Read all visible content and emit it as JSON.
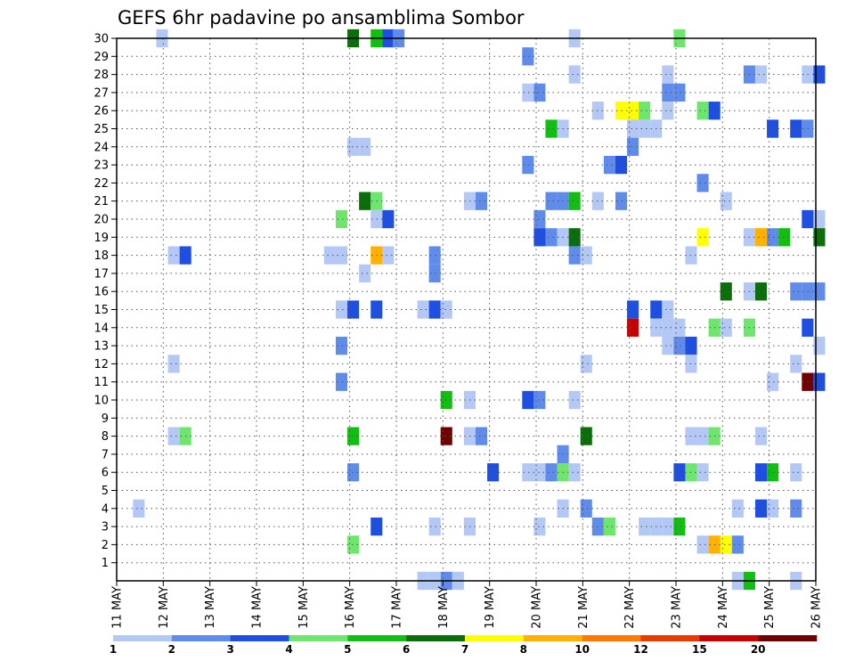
{
  "chart_data": {
    "type": "heatmap",
    "title": "GEFS 6hr padavine po ansamblima Sombor",
    "xlabel": "",
    "ylabel": "",
    "x_ticks": [
      "11 MAY",
      "12 MAY",
      "13 MAY",
      "14 MAY",
      "15 MAY",
      "16 MAY",
      "17 MAY",
      "18 MAY",
      "19 MAY",
      "20 MAY",
      "21 MAY",
      "22 MAY",
      "23 MAY",
      "24 MAY",
      "25 MAY",
      "26 MAY"
    ],
    "y_ticks": [
      "1",
      "2",
      "3",
      "4",
      "5",
      "6",
      "7",
      "8",
      "9",
      "10",
      "11",
      "12",
      "13",
      "14",
      "15",
      "16",
      "17",
      "18",
      "19",
      "20",
      "21",
      "22",
      "23",
      "24",
      "25",
      "26",
      "27",
      "28",
      "29",
      "30"
    ],
    "xlim": [
      0,
      60
    ],
    "ylim": [
      0,
      30
    ],
    "grid": true,
    "legend": {
      "position": "bottom",
      "thresholds": [
        "1",
        "2",
        "3",
        "4",
        "5",
        "6",
        "7",
        "8",
        "10",
        "12",
        "15",
        "20"
      ],
      "colors": [
        "#b4c8f5",
        "#5f8ceb",
        "#1f4fe0",
        "#6ee66e",
        "#11be11",
        "#0a6e0a",
        "#ffff00",
        "#ffb000",
        "#ff7800",
        "#e63c00",
        "#c80000",
        "#6e0000"
      ]
    },
    "cells": [
      {
        "t": 3.4,
        "m": 30,
        "c": 1
      },
      {
        "t": 19.8,
        "m": 30,
        "c": 6
      },
      {
        "t": 21.8,
        "m": 30,
        "c": 5
      },
      {
        "t": 22.8,
        "m": 30,
        "c": 3
      },
      {
        "t": 23.7,
        "m": 30,
        "c": 2
      },
      {
        "t": 38.8,
        "m": 30,
        "c": 1
      },
      {
        "t": 47.8,
        "m": 30,
        "c": 4
      },
      {
        "t": 34.8,
        "m": 29,
        "c": 2
      },
      {
        "t": 38.8,
        "m": 28,
        "c": 1
      },
      {
        "t": 46.8,
        "m": 28,
        "c": 1
      },
      {
        "t": 53.8,
        "m": 28,
        "c": 2
      },
      {
        "t": 54.8,
        "m": 28,
        "c": 1
      },
      {
        "t": 58.8,
        "m": 28,
        "c": 1
      },
      {
        "t": 59.8,
        "m": 28,
        "c": 3
      },
      {
        "t": 34.8,
        "m": 27,
        "c": 1
      },
      {
        "t": 35.8,
        "m": 27,
        "c": 2
      },
      {
        "t": 46.8,
        "m": 27,
        "c": 2
      },
      {
        "t": 47.8,
        "m": 27,
        "c": 2
      },
      {
        "t": 40.8,
        "m": 26,
        "c": 1
      },
      {
        "t": 42.8,
        "m": 26,
        "c": 7
      },
      {
        "t": 43.8,
        "m": 26,
        "c": 7
      },
      {
        "t": 44.8,
        "m": 26,
        "c": 4
      },
      {
        "t": 46.8,
        "m": 26,
        "c": 1
      },
      {
        "t": 49.8,
        "m": 26,
        "c": 4
      },
      {
        "t": 50.8,
        "m": 26,
        "c": 3
      },
      {
        "t": 36.8,
        "m": 25,
        "c": 5
      },
      {
        "t": 37.8,
        "m": 25,
        "c": 1
      },
      {
        "t": 43.8,
        "m": 25,
        "c": 1
      },
      {
        "t": 44.8,
        "m": 25,
        "c": 1
      },
      {
        "t": 45.8,
        "m": 25,
        "c": 1
      },
      {
        "t": 55.8,
        "m": 25,
        "c": 3
      },
      {
        "t": 57.8,
        "m": 25,
        "c": 3
      },
      {
        "t": 58.8,
        "m": 25,
        "c": 2
      },
      {
        "t": 19.8,
        "m": 24,
        "c": 1
      },
      {
        "t": 20.8,
        "m": 24,
        "c": 1
      },
      {
        "t": 43.8,
        "m": 24,
        "c": 2
      },
      {
        "t": 34.8,
        "m": 23,
        "c": 2
      },
      {
        "t": 41.8,
        "m": 23,
        "c": 2
      },
      {
        "t": 42.8,
        "m": 23,
        "c": 3
      },
      {
        "t": 49.8,
        "m": 22,
        "c": 2
      },
      {
        "t": 20.8,
        "m": 21,
        "c": 6
      },
      {
        "t": 21.8,
        "m": 21,
        "c": 4
      },
      {
        "t": 29.8,
        "m": 21,
        "c": 1
      },
      {
        "t": 30.8,
        "m": 21,
        "c": 2
      },
      {
        "t": 36.8,
        "m": 21,
        "c": 2
      },
      {
        "t": 37.8,
        "m": 21,
        "c": 2
      },
      {
        "t": 38.8,
        "m": 21,
        "c": 5
      },
      {
        "t": 40.8,
        "m": 21,
        "c": 1
      },
      {
        "t": 42.8,
        "m": 21,
        "c": 2
      },
      {
        "t": 51.8,
        "m": 21,
        "c": 1
      },
      {
        "t": 18.8,
        "m": 20,
        "c": 4
      },
      {
        "t": 21.8,
        "m": 20,
        "c": 1
      },
      {
        "t": 22.8,
        "m": 20,
        "c": 3
      },
      {
        "t": 35.8,
        "m": 20,
        "c": 2
      },
      {
        "t": 58.8,
        "m": 20,
        "c": 3
      },
      {
        "t": 59.8,
        "m": 20,
        "c": 1
      },
      {
        "t": 35.8,
        "m": 19,
        "c": 3
      },
      {
        "t": 36.8,
        "m": 19,
        "c": 2
      },
      {
        "t": 37.8,
        "m": 19,
        "c": 1
      },
      {
        "t": 38.8,
        "m": 19,
        "c": 6
      },
      {
        "t": 49.8,
        "m": 19,
        "c": 7
      },
      {
        "t": 53.8,
        "m": 19,
        "c": 1
      },
      {
        "t": 54.8,
        "m": 19,
        "c": 8
      },
      {
        "t": 55.8,
        "m": 19,
        "c": 2
      },
      {
        "t": 56.8,
        "m": 19,
        "c": 5
      },
      {
        "t": 59.8,
        "m": 19,
        "c": 6
      },
      {
        "t": 4.4,
        "m": 18,
        "c": 1
      },
      {
        "t": 5.4,
        "m": 18,
        "c": 3
      },
      {
        "t": 17.8,
        "m": 18,
        "c": 1
      },
      {
        "t": 18.8,
        "m": 18,
        "c": 1
      },
      {
        "t": 21.8,
        "m": 18,
        "c": 8
      },
      {
        "t": 22.8,
        "m": 18,
        "c": 1
      },
      {
        "t": 26.8,
        "m": 18,
        "c": 2
      },
      {
        "t": 38.8,
        "m": 18,
        "c": 2
      },
      {
        "t": 39.8,
        "m": 18,
        "c": 1
      },
      {
        "t": 48.8,
        "m": 18,
        "c": 1
      },
      {
        "t": 20.8,
        "m": 17,
        "c": 1
      },
      {
        "t": 26.8,
        "m": 17,
        "c": 2
      },
      {
        "t": 51.8,
        "m": 16,
        "c": 6
      },
      {
        "t": 53.8,
        "m": 16,
        "c": 1
      },
      {
        "t": 54.8,
        "m": 16,
        "c": 6
      },
      {
        "t": 57.8,
        "m": 16,
        "c": 2
      },
      {
        "t": 58.8,
        "m": 16,
        "c": 2
      },
      {
        "t": 59.8,
        "m": 16,
        "c": 2
      },
      {
        "t": 18.8,
        "m": 15,
        "c": 1
      },
      {
        "t": 19.8,
        "m": 15,
        "c": 3
      },
      {
        "t": 21.8,
        "m": 15,
        "c": 3
      },
      {
        "t": 25.8,
        "m": 15,
        "c": 1
      },
      {
        "t": 26.8,
        "m": 15,
        "c": 3
      },
      {
        "t": 27.8,
        "m": 15,
        "c": 1
      },
      {
        "t": 43.8,
        "m": 15,
        "c": 3
      },
      {
        "t": 45.8,
        "m": 15,
        "c": 3
      },
      {
        "t": 46.8,
        "m": 15,
        "c": 1
      },
      {
        "t": 43.8,
        "m": 14,
        "c": 11
      },
      {
        "t": 45.8,
        "m": 14,
        "c": 1
      },
      {
        "t": 46.8,
        "m": 14,
        "c": 1
      },
      {
        "t": 47.8,
        "m": 14,
        "c": 1
      },
      {
        "t": 50.8,
        "m": 14,
        "c": 4
      },
      {
        "t": 51.8,
        "m": 14,
        "c": 1
      },
      {
        "t": 53.8,
        "m": 14,
        "c": 4
      },
      {
        "t": 58.8,
        "m": 14,
        "c": 3
      },
      {
        "t": 18.8,
        "m": 13,
        "c": 2
      },
      {
        "t": 46.8,
        "m": 13,
        "c": 1
      },
      {
        "t": 47.8,
        "m": 13,
        "c": 2
      },
      {
        "t": 48.8,
        "m": 13,
        "c": 3
      },
      {
        "t": 59.8,
        "m": 13,
        "c": 1
      },
      {
        "t": 4.4,
        "m": 12,
        "c": 1
      },
      {
        "t": 39.8,
        "m": 12,
        "c": 1
      },
      {
        "t": 48.8,
        "m": 12,
        "c": 1
      },
      {
        "t": 57.8,
        "m": 12,
        "c": 1
      },
      {
        "t": 18.8,
        "m": 11,
        "c": 2
      },
      {
        "t": 55.8,
        "m": 11,
        "c": 1
      },
      {
        "t": 58.8,
        "m": 11,
        "c": 12
      },
      {
        "t": 59.8,
        "m": 11,
        "c": 3
      },
      {
        "t": 27.8,
        "m": 10,
        "c": 5
      },
      {
        "t": 29.8,
        "m": 10,
        "c": 1
      },
      {
        "t": 34.8,
        "m": 10,
        "c": 3
      },
      {
        "t": 35.8,
        "m": 10,
        "c": 2
      },
      {
        "t": 38.8,
        "m": 10,
        "c": 1
      },
      {
        "t": 4.4,
        "m": 8,
        "c": 1
      },
      {
        "t": 5.4,
        "m": 8,
        "c": 4
      },
      {
        "t": 19.8,
        "m": 8,
        "c": 5
      },
      {
        "t": 27.8,
        "m": 8,
        "c": 12
      },
      {
        "t": 29.8,
        "m": 8,
        "c": 1
      },
      {
        "t": 30.8,
        "m": 8,
        "c": 2
      },
      {
        "t": 39.8,
        "m": 8,
        "c": 6
      },
      {
        "t": 48.8,
        "m": 8,
        "c": 1
      },
      {
        "t": 49.8,
        "m": 8,
        "c": 1
      },
      {
        "t": 50.8,
        "m": 8,
        "c": 4
      },
      {
        "t": 54.8,
        "m": 8,
        "c": 1
      },
      {
        "t": 37.8,
        "m": 7,
        "c": 2
      },
      {
        "t": 19.8,
        "m": 6,
        "c": 2
      },
      {
        "t": 31.8,
        "m": 6,
        "c": 3
      },
      {
        "t": 34.8,
        "m": 6,
        "c": 1
      },
      {
        "t": 35.8,
        "m": 6,
        "c": 1
      },
      {
        "t": 36.8,
        "m": 6,
        "c": 2
      },
      {
        "t": 37.8,
        "m": 6,
        "c": 4
      },
      {
        "t": 38.8,
        "m": 6,
        "c": 1
      },
      {
        "t": 47.8,
        "m": 6,
        "c": 3
      },
      {
        "t": 48.8,
        "m": 6,
        "c": 4
      },
      {
        "t": 49.8,
        "m": 6,
        "c": 1
      },
      {
        "t": 54.8,
        "m": 6,
        "c": 3
      },
      {
        "t": 55.8,
        "m": 6,
        "c": 5
      },
      {
        "t": 57.8,
        "m": 6,
        "c": 1
      },
      {
        "t": 1.4,
        "m": 4,
        "c": 1
      },
      {
        "t": 37.8,
        "m": 4,
        "c": 1
      },
      {
        "t": 39.8,
        "m": 4,
        "c": 2
      },
      {
        "t": 52.8,
        "m": 4,
        "c": 1
      },
      {
        "t": 54.8,
        "m": 4,
        "c": 3
      },
      {
        "t": 55.8,
        "m": 4,
        "c": 1
      },
      {
        "t": 57.8,
        "m": 4,
        "c": 2
      },
      {
        "t": 21.8,
        "m": 3,
        "c": 3
      },
      {
        "t": 26.8,
        "m": 3,
        "c": 1
      },
      {
        "t": 29.8,
        "m": 3,
        "c": 1
      },
      {
        "t": 35.8,
        "m": 3,
        "c": 1
      },
      {
        "t": 40.8,
        "m": 3,
        "c": 2
      },
      {
        "t": 41.8,
        "m": 3,
        "c": 4
      },
      {
        "t": 44.8,
        "m": 3,
        "c": 1
      },
      {
        "t": 45.8,
        "m": 3,
        "c": 1
      },
      {
        "t": 46.8,
        "m": 3,
        "c": 1
      },
      {
        "t": 47.8,
        "m": 3,
        "c": 5
      },
      {
        "t": 19.8,
        "m": 2,
        "c": 4
      },
      {
        "t": 49.8,
        "m": 2,
        "c": 1
      },
      {
        "t": 50.8,
        "m": 2,
        "c": 8
      },
      {
        "t": 51.8,
        "m": 2,
        "c": 7
      },
      {
        "t": 52.8,
        "m": 2,
        "c": 2
      },
      {
        "t": 25.8,
        "m": 0,
        "c": 1
      },
      {
        "t": 26.8,
        "m": 0,
        "c": 1
      },
      {
        "t": 27.8,
        "m": 0,
        "c": 2
      },
      {
        "t": 28.8,
        "m": 0,
        "c": 1
      },
      {
        "t": 52.8,
        "m": 0,
        "c": 1
      },
      {
        "t": 53.8,
        "m": 0,
        "c": 5
      },
      {
        "t": 57.8,
        "m": 0,
        "c": 1
      }
    ]
  }
}
